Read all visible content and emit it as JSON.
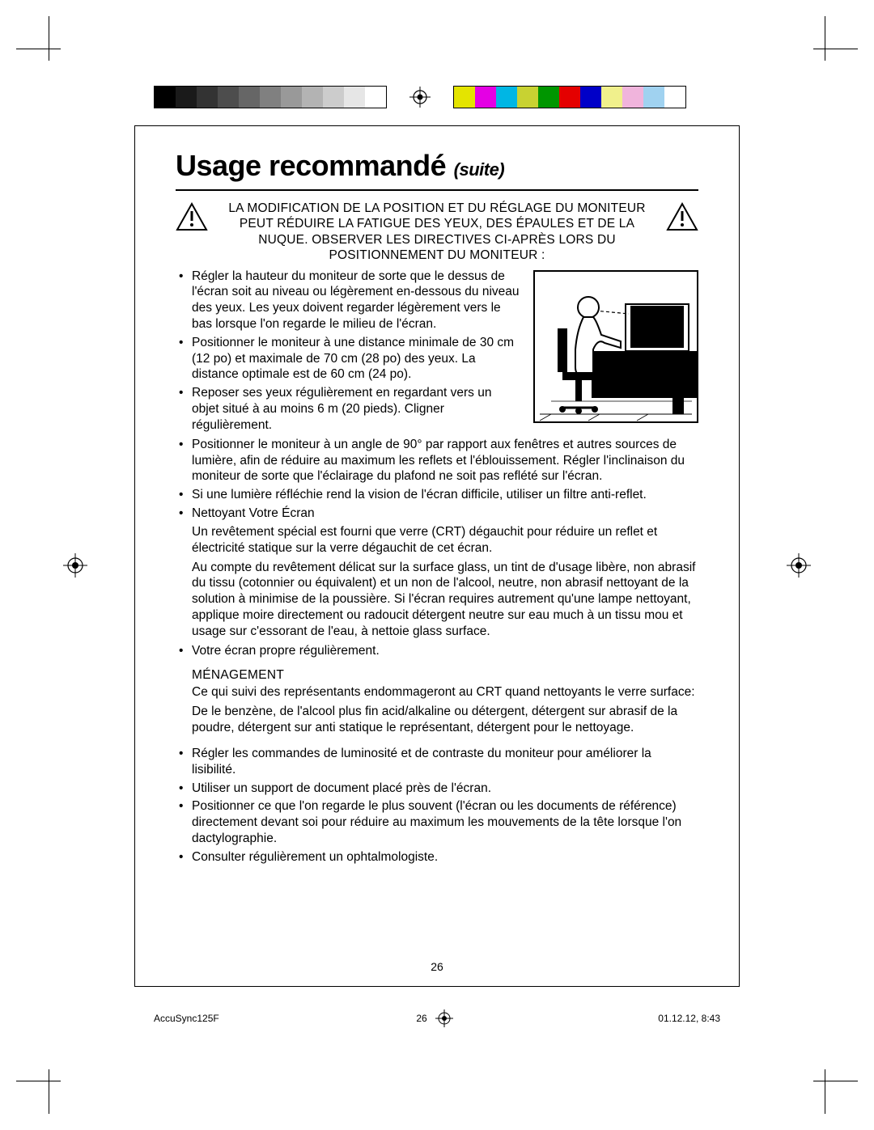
{
  "title_main": "Usage recommandé",
  "title_suffix": "(suite)",
  "warning_text": "LA MODIFICATION DE LA POSITION ET DU RÉGLAGE DU MONITEUR PEUT RÉDUIRE LA FATIGUE DES YEUX, DES ÉPAULES ET DE LA NUQUE. OBSERVER LES DIRECTIVES CI-APRÈS LORS DU POSITIONNEMENT DU MONITEUR :",
  "bullets_left": [
    "Régler la hauteur du moniteur de sorte que le dessus de l'écran soit au niveau ou légèrement en-dessous du niveau des yeux. Les yeux doivent regarder légèrement vers le bas lorsque l'on regarde le milieu de l'écran.",
    "Positionner le moniteur à une distance minimale de 30 cm (12 po) et maximale de 70 cm (28 po) des yeux. La distance optimale est de 60 cm (24 po).",
    "Reposer ses yeux régulièrement en regardant vers un objet situé à au moins 6 m (20 pieds). Cligner régulièrement."
  ],
  "bullets_full": [
    "Positionner le moniteur à un angle de 90° par rapport aux fenêtres et autres sources de lumière, afin de réduire au maximum les reflets et l'éblouissement. Régler l'inclinaison du moniteur de sorte que l'éclairage du plafond ne soit pas reflété sur l'écran.",
    "Si une lumière réfléchie rend la vision de l'écran difficile, utiliser un filtre anti-reflet.",
    "Nettoyant Votre Écran"
  ],
  "nettoyant_para1": "Un revêtement spécial est fourni que verre (CRT) dégauchit pour réduire un reflet et électricité statique sur la verre dégauchit de cet écran.",
  "nettoyant_para2": "Au compte du revêtement délicat sur la surface glass, un tint de d'usage libère, non abrasif du tissu (cotonnier ou équivalent) et un non de l'alcool, neutre, non abrasif nettoyant de la solution à minimise de la poussière. Si l'écran requires autrement qu'une lampe nettoyant, applique moire directement ou radoucit détergent neutre sur eau much à un tissu mou et usage sur c'essorant de l'eau, à nettoie glass surface.",
  "bullet_after_nettoyant": "Votre écran propre régulièrement.",
  "menagement_label": "MÉNAGEMENT",
  "menagement_para1": "Ce qui suivi des représentants endommageront au CRT quand nettoyants le verre surface:",
  "menagement_para2": "De le benzène, de l'alcool plus fin acid/alkaline ou détergent, détergent sur abrasif de la poudre, détergent sur anti statique le représentant, détergent pour le nettoyage.",
  "bullets_trailing": [
    "Régler les commandes de luminosité et de contraste du moniteur pour améliorer la lisibilité.",
    "Utiliser un support de document placé près de l'écran.",
    "Positionner ce que l'on regarde le plus souvent (l'écran ou les documents de référence) directement devant soi pour réduire au maximum les mouvements de la tête lorsque l'on dactylographie.",
    "Consulter régulièrement un ophtalmologiste."
  ],
  "page_number": "26",
  "footer_left": "AccuSync125F",
  "footer_mid": "26",
  "footer_right": "01.12.12, 8:43",
  "grayscale": [
    "#000000",
    "#1a1a1a",
    "#333333",
    "#4d4d4d",
    "#666666",
    "#808080",
    "#999999",
    "#b3b3b3",
    "#cccccc",
    "#e6e6e6",
    "#ffffff"
  ],
  "hues": [
    "#e4e400",
    "#e400e4",
    "#00b6e4",
    "#c8d232",
    "#009600",
    "#e40000",
    "#0000c8",
    "#f0f08c",
    "#f0b4dc",
    "#a0d2f0",
    "#ffffff"
  ],
  "fig": {
    "bg": "#ffffff",
    "desk_color": "#000000",
    "person_outline": "#000000"
  },
  "typography": {
    "title_fontsize_pt": 27,
    "suite_fontsize_pt": 16,
    "body_fontsize_pt": 11.5,
    "warn_fontsize_pt": 11.5,
    "footer_fontsize_pt": 9
  }
}
